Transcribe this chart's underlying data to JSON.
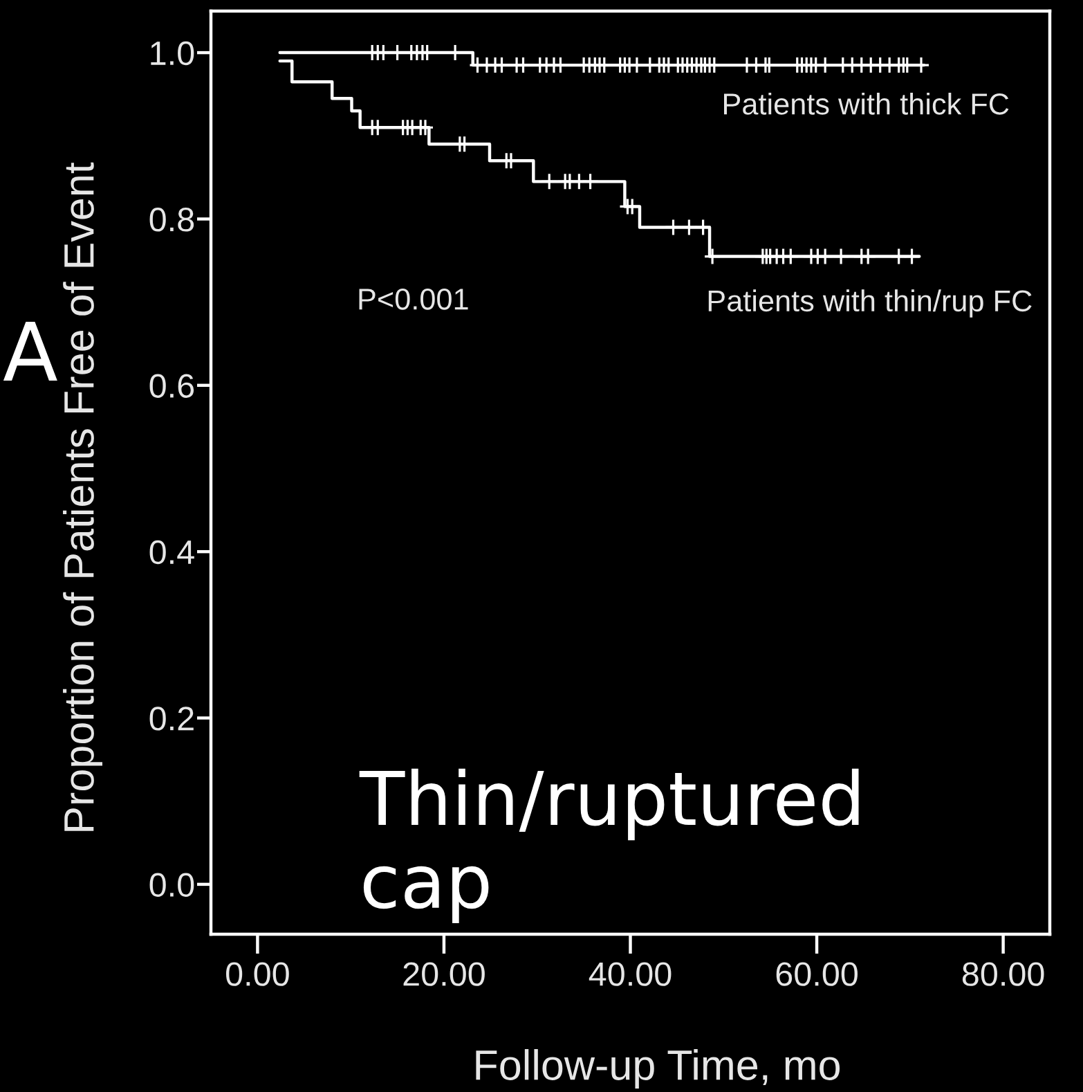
{
  "chart_data": {
    "type": "step",
    "xlabel": "Follow-up Time, mo",
    "ylabel": "Proportion of Patients Free of Event",
    "annotations": [
      "P<0.001",
      "A",
      "Thin/ruptured cap"
    ],
    "xlim": [
      -5,
      85
    ],
    "ylim": [
      -0.06,
      1.05
    ],
    "xticks": [
      {
        "value": 0,
        "label": "0.00"
      },
      {
        "value": 20,
        "label": "20.00"
      },
      {
        "value": 40,
        "label": "40.00"
      },
      {
        "value": 60,
        "label": "60.00"
      },
      {
        "value": 80,
        "label": "80.00"
      }
    ],
    "yticks": [
      {
        "value": 0,
        "label": "0.0"
      },
      {
        "value": 0.2,
        "label": "0.2"
      },
      {
        "value": 0.4,
        "label": "0.4"
      },
      {
        "value": 0.6,
        "label": "0.6"
      },
      {
        "value": 0.8,
        "label": "0.8"
      },
      {
        "value": 1,
        "label": "1.0"
      }
    ],
    "series": [
      {
        "name": "Patients with thick FC",
        "color": "#ffffff",
        "x": [
          2.4,
          23.1,
          71.5
        ],
        "values": [
          1.0,
          0.985,
          0.985
        ]
      },
      {
        "name": "Patients with thin/rup FC",
        "color": "#ffffff",
        "x": [
          2.4,
          3.7,
          8.0,
          10.1,
          11.0,
          18.4,
          24.9,
          29.6,
          39.4,
          41.0,
          48.5,
          71.0
        ],
        "values": [
          0.99,
          0.965,
          0.945,
          0.93,
          0.91,
          0.89,
          0.87,
          0.845,
          0.815,
          0.79,
          0.755,
          0.755
        ]
      },
      {
        "type": "scatter",
        "marker": "cross",
        "color": "#ffffff",
        "x": [
          12.3,
          12.9,
          13.5,
          15.0,
          16.5,
          17.1,
          17.7,
          18.2,
          21.2,
          23.6,
          24.6,
          25.5,
          26.2,
          27.8,
          28.5,
          30.3,
          31.0,
          31.8,
          32.5,
          35.0,
          35.6,
          36.2,
          36.7,
          37.2,
          38.9,
          39.4,
          39.9,
          40.7,
          42.1,
          43.1,
          43.6,
          44.1,
          45.1,
          45.6,
          46.1,
          46.6,
          47.1,
          47.6,
          48.0,
          48.5,
          49.0,
          52.5,
          53.5,
          54.5,
          54.9,
          57.9,
          58.4,
          58.9,
          59.4,
          59.9,
          60.9,
          62.8,
          63.8,
          64.8,
          65.8,
          66.8,
          67.8,
          68.8,
          69.3,
          69.7,
          71.2
        ],
        "values": [
          1.0,
          1.0,
          1.0,
          1.0,
          1.0,
          1.0,
          1.0,
          1.0,
          1.0,
          0.985,
          0.985,
          0.985,
          0.985,
          0.985,
          0.985,
          0.985,
          0.985,
          0.985,
          0.985,
          0.985,
          0.985,
          0.985,
          0.985,
          0.985,
          0.985,
          0.985,
          0.985,
          0.985,
          0.985,
          0.985,
          0.985,
          0.985,
          0.985,
          0.985,
          0.985,
          0.985,
          0.985,
          0.985,
          0.985,
          0.985,
          0.985,
          0.985,
          0.985,
          0.985,
          0.985,
          0.985,
          0.985,
          0.985,
          0.985,
          0.985,
          0.985,
          0.985,
          0.985,
          0.985,
          0.985,
          0.985,
          0.985,
          0.985,
          0.985,
          0.985,
          0.985
        ]
      },
      {
        "type": "scatter",
        "marker": "cross",
        "color": "#ffffff",
        "x": [
          12.3,
          12.9,
          15.6,
          16.1,
          16.6,
          17.5,
          18.0,
          21.7,
          22.2,
          26.7,
          27.2,
          31.3,
          33.0,
          33.5,
          34.5,
          35.7,
          39.7,
          40.2,
          44.6,
          46.3,
          47.8,
          48.8,
          54.2,
          54.6,
          55.0,
          55.7,
          56.4,
          57.2,
          59.4,
          60.1,
          60.9,
          62.6,
          64.8,
          65.5,
          68.8,
          70.2
        ],
        "values": [
          0.91,
          0.91,
          0.91,
          0.91,
          0.91,
          0.91,
          0.91,
          0.89,
          0.89,
          0.87,
          0.87,
          0.845,
          0.845,
          0.845,
          0.845,
          0.845,
          0.815,
          0.815,
          0.79,
          0.79,
          0.79,
          0.755,
          0.755,
          0.755,
          0.755,
          0.755,
          0.755,
          0.755,
          0.755,
          0.755,
          0.755,
          0.755,
          0.755,
          0.755,
          0.755,
          0.755
        ]
      }
    ]
  }
}
